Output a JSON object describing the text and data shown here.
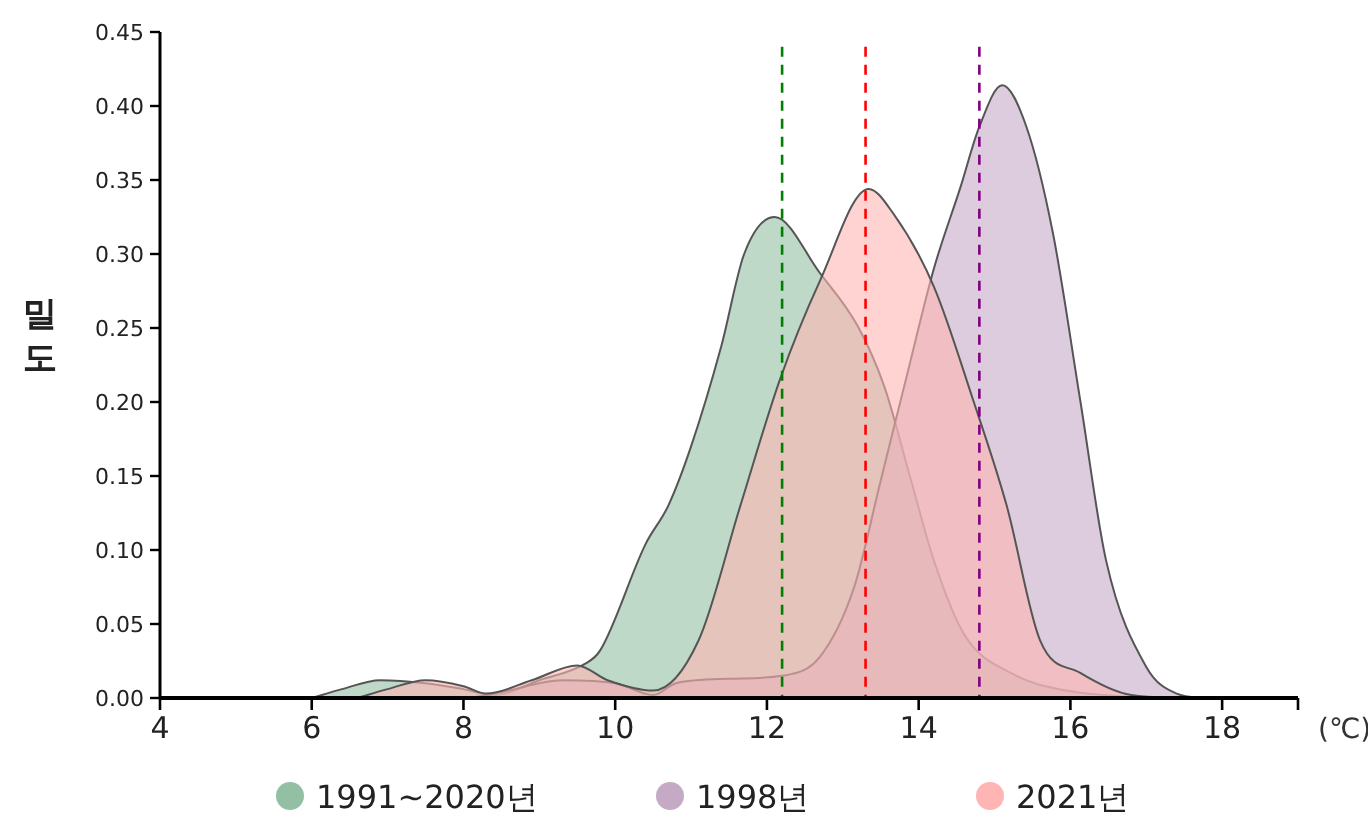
{
  "chart_data": {
    "type": "area",
    "xlabel": "(℃)",
    "ylabel": "밀도",
    "xlim": [
      4,
      19
    ],
    "ylim": [
      0,
      0.45
    ],
    "xticks": [
      4,
      6,
      8,
      10,
      12,
      14,
      16,
      18
    ],
    "yticks": [
      {
        "value": 0,
        "label": "0.00"
      },
      {
        "value": 0.05,
        "label": "0.05"
      },
      {
        "value": 0.1,
        "label": "0.10"
      },
      {
        "value": 0.15,
        "label": "0.15"
      },
      {
        "value": 0.2,
        "label": "0.20"
      },
      {
        "value": 0.25,
        "label": "0.25"
      },
      {
        "value": 0.3,
        "label": "0.30"
      },
      {
        "value": 0.35,
        "label": "0.35"
      },
      {
        "value": 0.4,
        "label": "0.40"
      },
      {
        "value": 0.45,
        "label": "0.45"
      }
    ],
    "series": [
      {
        "name": "1991~2020년",
        "color": "#93c0a4",
        "x": [
          6,
          6.4,
          6.9,
          7.5,
          8.0,
          8.4,
          9.0,
          9.6,
          9.8,
          10.4,
          10.7,
          11.0,
          11.4,
          11.7,
          12.1,
          12.7,
          13.2,
          13.55,
          13.9,
          14.2,
          14.6,
          15.25,
          15.95,
          17
        ],
        "values": [
          0,
          0.006,
          0.012,
          0.01,
          0.006,
          0.002,
          0.012,
          0.023,
          0.032,
          0.104,
          0.13,
          0.17,
          0.238,
          0.3,
          0.325,
          0.287,
          0.251,
          0.21,
          0.147,
          0.093,
          0.043,
          0.016,
          0.005,
          0
        ]
      },
      {
        "name": "1998년",
        "color": "#c5aac6",
        "x": [
          6,
          8.0,
          8.5,
          9.3,
          10.0,
          10.5,
          10.8,
          11.5,
          12.2,
          12.7,
          13.15,
          13.5,
          13.85,
          14.2,
          14.55,
          14.8,
          15.1,
          15.42,
          15.77,
          16.13,
          16.47,
          17.0,
          17.4,
          17.8
        ],
        "values": [
          0,
          0,
          0.004,
          0.012,
          0.01,
          0.002,
          0.01,
          0.013,
          0.015,
          0.028,
          0.075,
          0.147,
          0.219,
          0.29,
          0.345,
          0.386,
          0.414,
          0.386,
          0.314,
          0.201,
          0.093,
          0.021,
          0.003,
          0
        ]
      },
      {
        "name": "2021년",
        "color": "#ffb5b3",
        "x": [
          6.6,
          7.0,
          7.5,
          8.0,
          8.3,
          8.9,
          9.5,
          9.9,
          10.5,
          11.1,
          11.65,
          12.17,
          12.7,
          13.34,
          13.67,
          14.2,
          14.72,
          15.16,
          15.6,
          16.13,
          16.8,
          17.5
        ],
        "values": [
          0,
          0.006,
          0.012,
          0.008,
          0.003,
          0.012,
          0.022,
          0.012,
          0.005,
          0.039,
          0.13,
          0.215,
          0.282,
          0.344,
          0.327,
          0.278,
          0.201,
          0.13,
          0.039,
          0.017,
          0.002,
          0
        ]
      }
    ],
    "ref_lines": [
      {
        "axis": "x",
        "value": 12.2,
        "color": "#008000",
        "line_style": "dashed"
      },
      {
        "axis": "x",
        "value": 13.3,
        "color": "#ff0000",
        "line_style": "dashed"
      },
      {
        "axis": "x",
        "value": 14.8,
        "color": "#800080",
        "line_style": "dashed"
      }
    ],
    "legend": "bottom"
  }
}
